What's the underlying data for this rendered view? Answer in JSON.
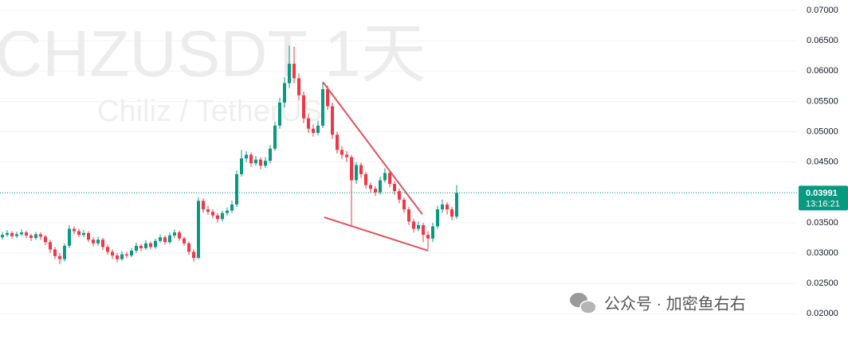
{
  "chart_data": {
    "type": "candlestick",
    "watermark": "CHZUSDT 1天",
    "watermark_subtitle": "Chiliz / TetherUS",
    "up_color": "#089981",
    "down_color": "#f23645",
    "grid": true,
    "ylim": [
      0.01584,
      0.0717
    ],
    "yticks": [
      {
        "value": 0.02,
        "label": "0.02000"
      },
      {
        "value": 0.025,
        "label": "0.02500"
      },
      {
        "value": 0.03,
        "label": "0.03000"
      },
      {
        "value": 0.035,
        "label": "0.03500"
      },
      {
        "value": 0.04,
        "label": "0.04000"
      },
      {
        "value": 0.045,
        "label": "0.04500"
      },
      {
        "value": 0.05,
        "label": "0.05000"
      },
      {
        "value": 0.055,
        "label": "0.05500"
      },
      {
        "value": 0.06,
        "label": "0.06000"
      },
      {
        "value": 0.065,
        "label": "0.06500"
      },
      {
        "value": 0.07,
        "label": "0.07000"
      }
    ],
    "last_price": {
      "value": 0.03991,
      "countdown": "13:16:21"
    },
    "trendline_color": "#e0505a",
    "trendlines": [
      {
        "from": {
          "index": 67,
          "price": 0.0582
        },
        "to": {
          "index": 87.8,
          "price": 0.0364
        }
      },
      {
        "from": {
          "index": 67.3,
          "price": 0.0359
        },
        "to": {
          "index": 89,
          "price": 0.0304
        }
      }
    ],
    "ohlc": [
      [
        0.0326,
        0.0335,
        0.0322,
        0.033
      ],
      [
        0.033,
        0.0338,
        0.0327,
        0.0333
      ],
      [
        0.0333,
        0.0336,
        0.0324,
        0.0328
      ],
      [
        0.0328,
        0.0335,
        0.0325,
        0.0331
      ],
      [
        0.0331,
        0.0339,
        0.0328,
        0.0334
      ],
      [
        0.0334,
        0.0337,
        0.0325,
        0.0329
      ],
      [
        0.0329,
        0.0332,
        0.032,
        0.0325
      ],
      [
        0.0325,
        0.0335,
        0.0322,
        0.0331
      ],
      [
        0.0331,
        0.0334,
        0.0322,
        0.0327
      ],
      [
        0.0327,
        0.033,
        0.0313,
        0.0318
      ],
      [
        0.0318,
        0.0322,
        0.03,
        0.0306
      ],
      [
        0.0306,
        0.031,
        0.029,
        0.0295
      ],
      [
        0.0295,
        0.03,
        0.0282,
        0.029
      ],
      [
        0.029,
        0.0316,
        0.0286,
        0.0312
      ],
      [
        0.0312,
        0.0346,
        0.0308,
        0.034
      ],
      [
        0.034,
        0.0344,
        0.0331,
        0.0336
      ],
      [
        0.0336,
        0.034,
        0.0326,
        0.033
      ],
      [
        0.033,
        0.0338,
        0.0326,
        0.0333
      ],
      [
        0.0333,
        0.0336,
        0.0318,
        0.0322
      ],
      [
        0.0322,
        0.0326,
        0.0311,
        0.0316
      ],
      [
        0.0316,
        0.0327,
        0.0312,
        0.0322
      ],
      [
        0.0322,
        0.0325,
        0.0305,
        0.031
      ],
      [
        0.031,
        0.0314,
        0.0297,
        0.0302
      ],
      [
        0.0302,
        0.0306,
        0.029,
        0.0296
      ],
      [
        0.0296,
        0.03,
        0.0285,
        0.029
      ],
      [
        0.029,
        0.0303,
        0.0287,
        0.0298
      ],
      [
        0.0298,
        0.0302,
        0.0292,
        0.0296
      ],
      [
        0.0296,
        0.0308,
        0.0293,
        0.0304
      ],
      [
        0.0304,
        0.0317,
        0.03,
        0.0312
      ],
      [
        0.0312,
        0.0315,
        0.0303,
        0.0308
      ],
      [
        0.0308,
        0.0321,
        0.0305,
        0.0316
      ],
      [
        0.0316,
        0.0319,
        0.0306,
        0.031
      ],
      [
        0.031,
        0.0324,
        0.0307,
        0.032
      ],
      [
        0.032,
        0.0331,
        0.0317,
        0.0326
      ],
      [
        0.0326,
        0.0329,
        0.0314,
        0.0318
      ],
      [
        0.0318,
        0.0334,
        0.0315,
        0.0329
      ],
      [
        0.0329,
        0.0339,
        0.0325,
        0.0334
      ],
      [
        0.0334,
        0.0337,
        0.032,
        0.0324
      ],
      [
        0.0324,
        0.0327,
        0.0312,
        0.0316
      ],
      [
        0.0316,
        0.0319,
        0.0297,
        0.0302
      ],
      [
        0.0302,
        0.0306,
        0.0286,
        0.0292
      ],
      [
        0.0292,
        0.0392,
        0.029,
        0.0386
      ],
      [
        0.0386,
        0.039,
        0.0366,
        0.0372
      ],
      [
        0.0372,
        0.0378,
        0.0363,
        0.0368
      ],
      [
        0.0368,
        0.0372,
        0.0357,
        0.0362
      ],
      [
        0.0362,
        0.0366,
        0.035,
        0.0356
      ],
      [
        0.0356,
        0.037,
        0.0352,
        0.0366
      ],
      [
        0.0366,
        0.0375,
        0.0362,
        0.037
      ],
      [
        0.037,
        0.0386,
        0.0366,
        0.038
      ],
      [
        0.038,
        0.0436,
        0.0376,
        0.043
      ],
      [
        0.043,
        0.047,
        0.0426,
        0.0456
      ],
      [
        0.0456,
        0.0468,
        0.045,
        0.0462
      ],
      [
        0.0462,
        0.0466,
        0.0442,
        0.0448
      ],
      [
        0.0448,
        0.046,
        0.0444,
        0.0454
      ],
      [
        0.0454,
        0.0458,
        0.0438,
        0.0444
      ],
      [
        0.0444,
        0.0458,
        0.044,
        0.0452
      ],
      [
        0.0452,
        0.0478,
        0.0448,
        0.0472
      ],
      [
        0.0472,
        0.0516,
        0.0468,
        0.051
      ],
      [
        0.051,
        0.0556,
        0.0505,
        0.0548
      ],
      [
        0.0548,
        0.059,
        0.054,
        0.058
      ],
      [
        0.058,
        0.0642,
        0.0572,
        0.0612
      ],
      [
        0.0612,
        0.064,
        0.058,
        0.0588
      ],
      [
        0.0588,
        0.0596,
        0.0552,
        0.056
      ],
      [
        0.056,
        0.0566,
        0.0514,
        0.0522
      ],
      [
        0.0522,
        0.053,
        0.0498,
        0.0505
      ],
      [
        0.0505,
        0.0512,
        0.0492,
        0.0498
      ],
      [
        0.0498,
        0.0518,
        0.0494,
        0.051
      ],
      [
        0.051,
        0.0582,
        0.0506,
        0.057
      ],
      [
        0.057,
        0.0576,
        0.0536,
        0.0542
      ],
      [
        0.0542,
        0.0548,
        0.0488,
        0.0495
      ],
      [
        0.0495,
        0.05,
        0.0464,
        0.047
      ],
      [
        0.047,
        0.0476,
        0.0455,
        0.0462
      ],
      [
        0.0462,
        0.0468,
        0.045,
        0.0458
      ],
      [
        0.0458,
        0.0462,
        0.0344,
        0.042
      ],
      [
        0.042,
        0.045,
        0.0414,
        0.0445
      ],
      [
        0.0445,
        0.0449,
        0.0424,
        0.043
      ],
      [
        0.043,
        0.0434,
        0.0406,
        0.0412
      ],
      [
        0.0412,
        0.0416,
        0.04,
        0.0406
      ],
      [
        0.0406,
        0.041,
        0.0394,
        0.04
      ],
      [
        0.04,
        0.0426,
        0.0396,
        0.042
      ],
      [
        0.042,
        0.044,
        0.0416,
        0.0432
      ],
      [
        0.0432,
        0.0436,
        0.0408,
        0.0414
      ],
      [
        0.0414,
        0.0418,
        0.0396,
        0.0402
      ],
      [
        0.0402,
        0.0406,
        0.0382,
        0.0388
      ],
      [
        0.0388,
        0.0392,
        0.0366,
        0.0372
      ],
      [
        0.0372,
        0.0376,
        0.0346,
        0.0352
      ],
      [
        0.0352,
        0.0356,
        0.0334,
        0.034
      ],
      [
        0.034,
        0.0352,
        0.0336,
        0.0346
      ],
      [
        0.0346,
        0.035,
        0.0318,
        0.033
      ],
      [
        0.033,
        0.0336,
        0.0306,
        0.0324
      ],
      [
        0.0324,
        0.035,
        0.0318,
        0.0344
      ],
      [
        0.0344,
        0.0378,
        0.034,
        0.0372
      ],
      [
        0.0372,
        0.0388,
        0.0366,
        0.038
      ],
      [
        0.038,
        0.0384,
        0.0364,
        0.0372
      ],
      [
        0.0372,
        0.0376,
        0.0354,
        0.036
      ],
      [
        0.036,
        0.0412,
        0.0356,
        0.03991
      ]
    ]
  },
  "overlay": {
    "text": "公众号 · 加密鱼右右"
  }
}
